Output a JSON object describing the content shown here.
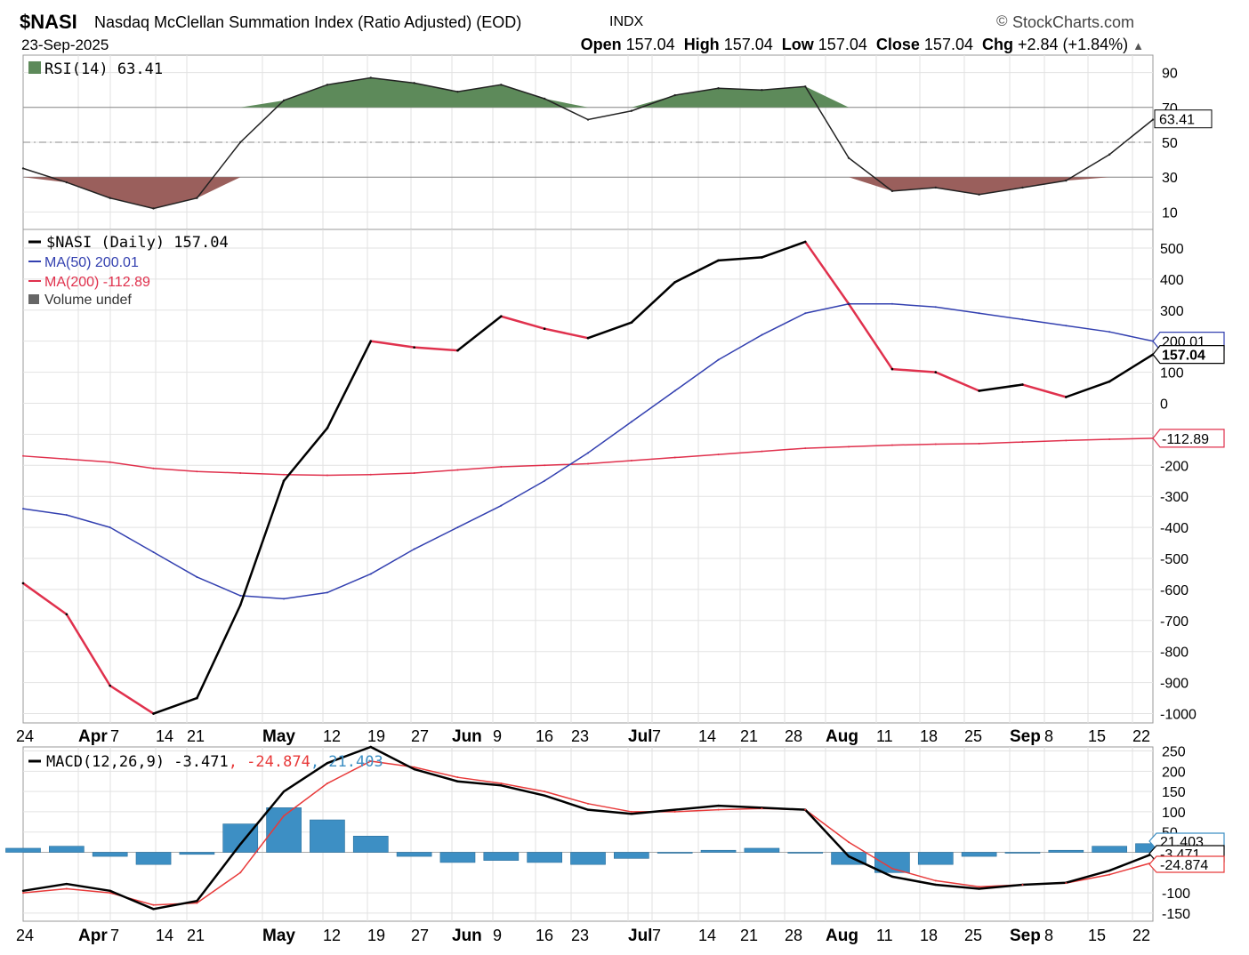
{
  "header": {
    "symbol": "$NASI",
    "name": "Nasdaq McClellan Summation Index (Ratio Adjusted) (EOD)",
    "exchange": "INDX",
    "brand": "StockCharts.com",
    "date": "23-Sep-2025",
    "open_label": "Open",
    "open": "157.04",
    "high_label": "High",
    "high": "157.04",
    "low_label": "Low",
    "low": "157.04",
    "close_label": "Close",
    "close": "157.04",
    "chg_label": "Chg",
    "chg": "+2.84 (+1.84%)"
  },
  "chart_data": [
    {
      "type": "line",
      "panel": "RSI",
      "legend": "RSI(14) 63.41",
      "ylim": [
        0,
        100
      ],
      "yticks": [
        10,
        30,
        50,
        70,
        90
      ],
      "reference_lines": [
        30,
        50,
        70
      ],
      "last_value_tag": "63.41",
      "x": [
        "Mar 24",
        "Mar 31",
        "Apr 7",
        "Apr 14",
        "Apr 21",
        "Apr 28",
        "May 5",
        "May 12",
        "May 19",
        "May 26",
        "Jun 2",
        "Jun 9",
        "Jun 16",
        "Jun 23",
        "Jun 30",
        "Jul 7",
        "Jul 14",
        "Jul 21",
        "Jul 28",
        "Aug 4",
        "Aug 11",
        "Aug 18",
        "Aug 25",
        "Sep 1",
        "Sep 8",
        "Sep 15",
        "Sep 22"
      ],
      "series": [
        {
          "name": "RSI(14)",
          "values": [
            35,
            27,
            18,
            12,
            18,
            50,
            74,
            83,
            87,
            84,
            79,
            83,
            75,
            63,
            68,
            77,
            81,
            80,
            82,
            41,
            22,
            24,
            20,
            24,
            28,
            43,
            63
          ]
        }
      ],
      "grid": true,
      "colors": {
        "line": "#222222",
        "overbought_fill": "#5d8a5a",
        "oversold_fill": "#9a5f5c"
      }
    },
    {
      "type": "line",
      "panel": "price",
      "x": [
        "Mar 24",
        "Mar 31",
        "Apr 7",
        "Apr 14",
        "Apr 21",
        "Apr 28",
        "May 5",
        "May 12",
        "May 19",
        "May 26",
        "Jun 2",
        "Jun 9",
        "Jun 16",
        "Jun 23",
        "Jun 30",
        "Jul 7",
        "Jul 14",
        "Jul 21",
        "Jul 28",
        "Aug 4",
        "Aug 11",
        "Aug 18",
        "Aug 25",
        "Sep 1",
        "Sep 8",
        "Sep 15",
        "Sep 22"
      ],
      "ylim": [
        -1030,
        560
      ],
      "yticks": [
        500,
        400,
        300,
        200,
        100,
        0,
        -100,
        -200,
        -300,
        -400,
        -500,
        -600,
        -700,
        -800,
        -900,
        -1000
      ],
      "ytick_labels": [
        "500",
        "400",
        "300",
        "200",
        "100",
        "0",
        "-100",
        "-200",
        "-300",
        "-400",
        "-500",
        "-600",
        "-700",
        "-800",
        "-900",
        "-1000"
      ],
      "x_tick_labels": [
        "24",
        "Apr",
        "7",
        "14",
        "21",
        "May",
        "12",
        "19",
        "27",
        "Jun",
        "9",
        "16",
        "23",
        "Jul",
        "7",
        "14",
        "21",
        "28",
        "Aug",
        "11",
        "18",
        "25",
        "Sep",
        "8",
        "15",
        "22"
      ],
      "series": [
        {
          "name": "$NASI (Daily) 157.04",
          "values": [
            -580,
            -680,
            -910,
            -1000,
            -950,
            -650,
            -250,
            -80,
            200,
            180,
            170,
            280,
            240,
            210,
            260,
            390,
            460,
            470,
            520,
            320,
            110,
            100,
            40,
            60,
            20,
            70,
            157
          ]
        },
        {
          "name": "MA(50) 200.01",
          "values": [
            -340,
            -360,
            -400,
            -480,
            -560,
            -620,
            -630,
            -610,
            -550,
            -470,
            -400,
            -330,
            -250,
            -160,
            -60,
            40,
            140,
            220,
            290,
            320,
            320,
            310,
            290,
            270,
            250,
            230,
            200
          ]
        },
        {
          "name": "MA(200) -112.89",
          "values": [
            -170,
            -180,
            -190,
            -210,
            -220,
            -225,
            -230,
            -232,
            -230,
            -225,
            -215,
            -205,
            -200,
            -195,
            -185,
            -175,
            -165,
            -155,
            -145,
            -140,
            -135,
            -132,
            -130,
            -125,
            -120,
            -116,
            -113
          ]
        }
      ],
      "last_value_tags": [
        "200.01",
        "157.04",
        "-112.89"
      ],
      "volume_legend": "Volume undef",
      "colors": {
        "price_up": "#000000",
        "price_down": "#e0314d",
        "ma50": "#3340b0",
        "ma200": "#e0314d"
      },
      "grid": true
    },
    {
      "type": "line",
      "panel": "MACD",
      "legend": {
        "main": "MACD(12,26,9) -3.471",
        "signal": "-24.874",
        "histogram": "21.403"
      },
      "ylim": [
        -170,
        260
      ],
      "yticks": [
        250,
        200,
        150,
        100,
        50,
        -100,
        -150
      ],
      "x": [
        "Mar 24",
        "Mar 31",
        "Apr 7",
        "Apr 14",
        "Apr 21",
        "Apr 28",
        "May 5",
        "May 12",
        "May 19",
        "May 26",
        "Jun 2",
        "Jun 9",
        "Jun 16",
        "Jun 23",
        "Jun 30",
        "Jul 7",
        "Jul 14",
        "Jul 21",
        "Jul 28",
        "Aug 4",
        "Aug 11",
        "Aug 18",
        "Aug 25",
        "Sep 1",
        "Sep 8",
        "Sep 15",
        "Sep 22"
      ],
      "x_tick_labels": [
        "24",
        "Apr",
        "7",
        "14",
        "21",
        "May",
        "12",
        "19",
        "27",
        "Jun",
        "9",
        "16",
        "23",
        "Jul",
        "7",
        "14",
        "21",
        "28",
        "Aug",
        "11",
        "18",
        "25",
        "Sep",
        "8",
        "15",
        "22"
      ],
      "series": [
        {
          "name": "MACD",
          "values": [
            -95,
            -78,
            -95,
            -140,
            -120,
            20,
            150,
            220,
            260,
            205,
            175,
            165,
            140,
            105,
            95,
            105,
            115,
            110,
            105,
            -10,
            -60,
            -80,
            -90,
            -80,
            -75,
            -45,
            -3.471
          ]
        },
        {
          "name": "Signal",
          "values": [
            -100,
            -90,
            -100,
            -130,
            -125,
            -50,
            90,
            170,
            225,
            210,
            185,
            170,
            150,
            120,
            100,
            100,
            105,
            108,
            105,
            25,
            -40,
            -70,
            -85,
            -80,
            -76,
            -55,
            -24.874
          ]
        },
        {
          "name": "Histogram",
          "values": [
            10,
            15,
            -10,
            -30,
            -5,
            70,
            110,
            80,
            40,
            -10,
            -25,
            -20,
            -25,
            -30,
            -15,
            0,
            5,
            10,
            0,
            -30,
            -50,
            -30,
            -10,
            0,
            5,
            15,
            21.403
          ]
        }
      ],
      "last_value_tags": [
        "21.403",
        "-3.471",
        "-24.874"
      ],
      "colors": {
        "macd": "#000000",
        "signal": "#e83a3a",
        "histogram": "#3d8fc4"
      },
      "grid": true
    }
  ]
}
